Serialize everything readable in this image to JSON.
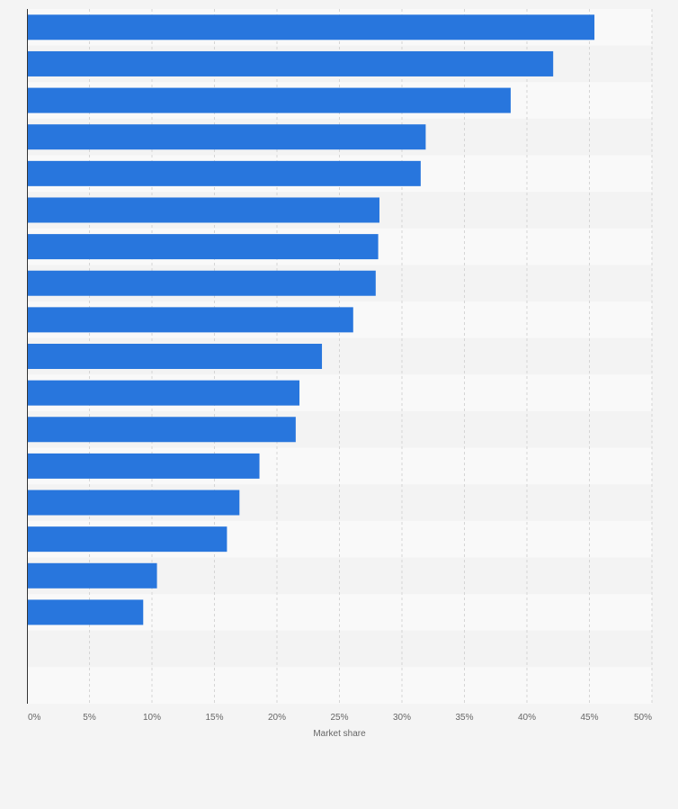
{
  "chart_data": {
    "type": "bar",
    "orientation": "horizontal",
    "categories": [
      "",
      "",
      "",
      "",
      "",
      "",
      "",
      "",
      "",
      "",
      "",
      "",
      "",
      "",
      "",
      "",
      "",
      "",
      ""
    ],
    "values": [
      45.4,
      42.1,
      38.7,
      31.9,
      31.5,
      28.2,
      28.1,
      27.9,
      26.1,
      23.6,
      21.8,
      21.5,
      18.6,
      17.0,
      16.0,
      10.4,
      9.3,
      null,
      null
    ],
    "xlabel": "Market share",
    "ylabel": "",
    "xlim": [
      0,
      50
    ],
    "x_ticks": [
      0,
      5,
      10,
      15,
      20,
      25,
      30,
      35,
      40,
      45,
      50
    ],
    "x_tick_labels": [
      "0%",
      "5%",
      "10%",
      "15%",
      "20%",
      "25%",
      "30%",
      "35%",
      "40%",
      "45%",
      "50%"
    ],
    "grid": true,
    "legend": "none",
    "colors": {
      "bar": "#2876dd",
      "band_light": "#f9f9f9",
      "band_dark": "#f3f3f3",
      "page_background": "#f4f4f4",
      "grid": "#d5d5d5",
      "axis": "#333333",
      "text": "#666666"
    }
  }
}
